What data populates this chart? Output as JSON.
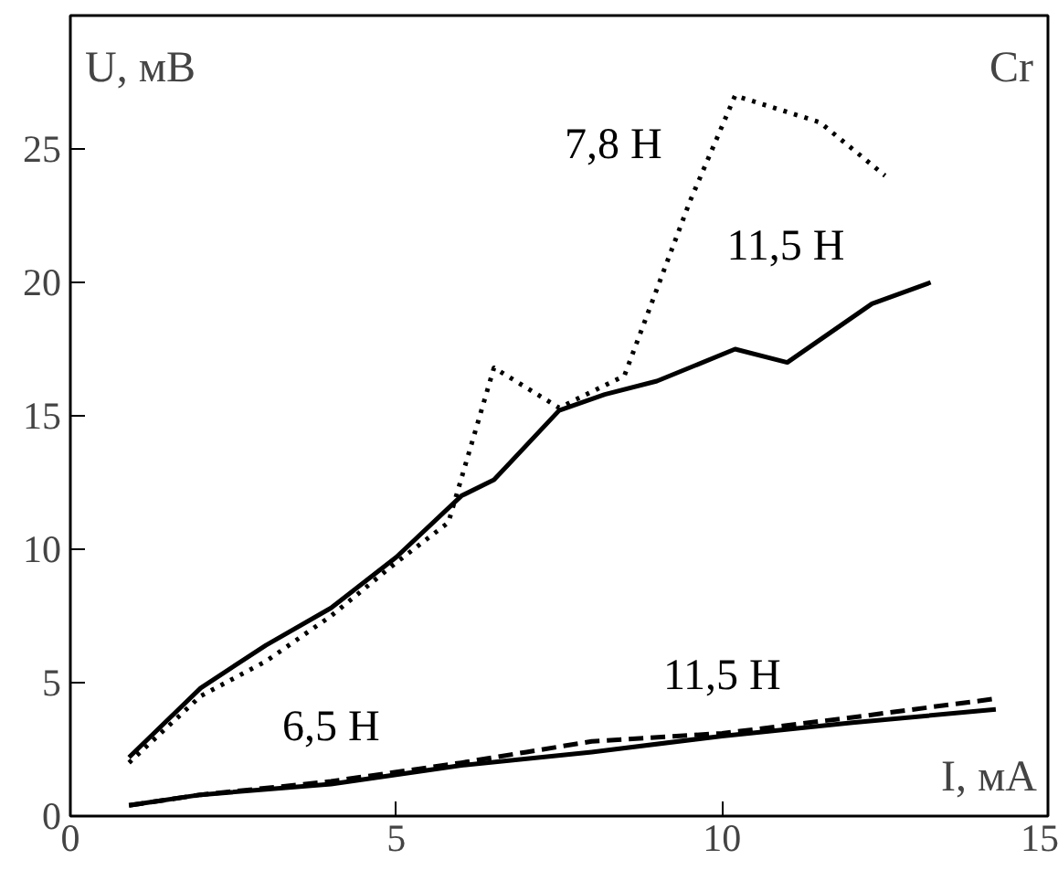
{
  "chart_data": {
    "type": "line",
    "title": "Cr",
    "xlabel": "I, мА",
    "ylabel": "U, мВ",
    "xlim": [
      0,
      15
    ],
    "ylim": [
      0,
      30
    ],
    "xticks": [
      0,
      5,
      10,
      15
    ],
    "yticks": [
      0,
      5,
      10,
      15,
      20,
      25
    ],
    "grid": false,
    "legend": false,
    "marker": "none",
    "series": [
      {
        "name": "7,8 Н",
        "color": "#000000",
        "line_style": "dotted",
        "x": [
          0.9,
          2,
          3,
          4,
          5,
          5.8,
          6.5,
          7.5,
          8.5,
          9.5,
          10.2,
          11.5,
          12.5
        ],
        "values": [
          2,
          4.5,
          5.8,
          7.5,
          9.5,
          11,
          16.8,
          15.3,
          16.5,
          23,
          27,
          26,
          24
        ]
      },
      {
        "name": "11,5 Н",
        "color": "#000000",
        "line_style": "solid",
        "x": [
          0.9,
          2,
          3,
          4,
          5,
          6,
          6.5,
          7.5,
          8.2,
          9,
          10.2,
          11,
          12.3,
          13.2
        ],
        "values": [
          2.2,
          4.8,
          6.4,
          7.8,
          9.7,
          12,
          12.6,
          15.2,
          15.8,
          16.3,
          17.5,
          17,
          19.2,
          20
        ]
      },
      {
        "name": "6,5 Н",
        "color": "#000000",
        "line_style": "solid",
        "x": [
          0.9,
          2,
          4,
          6,
          8,
          10,
          12,
          14.2
        ],
        "values": [
          0.4,
          0.8,
          1.2,
          1.9,
          2.4,
          3,
          3.5,
          4
        ]
      },
      {
        "name": "11,5 Н",
        "color": "#000000",
        "line_style": "dashed",
        "x": [
          0.9,
          2,
          4,
          6,
          7,
          8,
          10,
          12,
          14.2
        ],
        "values": [
          0.4,
          0.8,
          1.3,
          2,
          2.4,
          2.8,
          3.1,
          3.7,
          4.4
        ]
      }
    ]
  }
}
